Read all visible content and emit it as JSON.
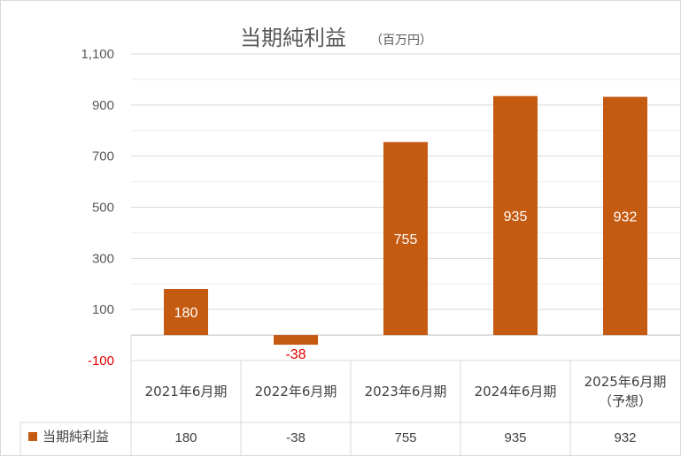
{
  "chart_data": {
    "type": "bar",
    "title": "当期純利益",
    "subtitle": "（百万円）",
    "categories": [
      [
        "2021年6月期"
      ],
      [
        "2022年6月期"
      ],
      [
        "2023年6月期"
      ],
      [
        "2024年6月期"
      ],
      [
        "2025年6月期",
        "（予想）"
      ]
    ],
    "series": [
      {
        "name": "当期純利益",
        "values": [
          180,
          -38,
          755,
          935,
          932
        ],
        "labels": [
          "180",
          "-38",
          "755",
          "935",
          "932"
        ],
        "color": "#c55a11"
      }
    ],
    "yticks": [
      1100,
      900,
      700,
      500,
      300,
      100,
      -100
    ],
    "ytick_labels": [
      "1,100",
      "900",
      "700",
      "500",
      "300",
      "100",
      "-100"
    ],
    "ylim": [
      -100,
      1100
    ],
    "negative_color": "#e60000",
    "grid": true,
    "legend": "data-table",
    "data_table": true
  }
}
